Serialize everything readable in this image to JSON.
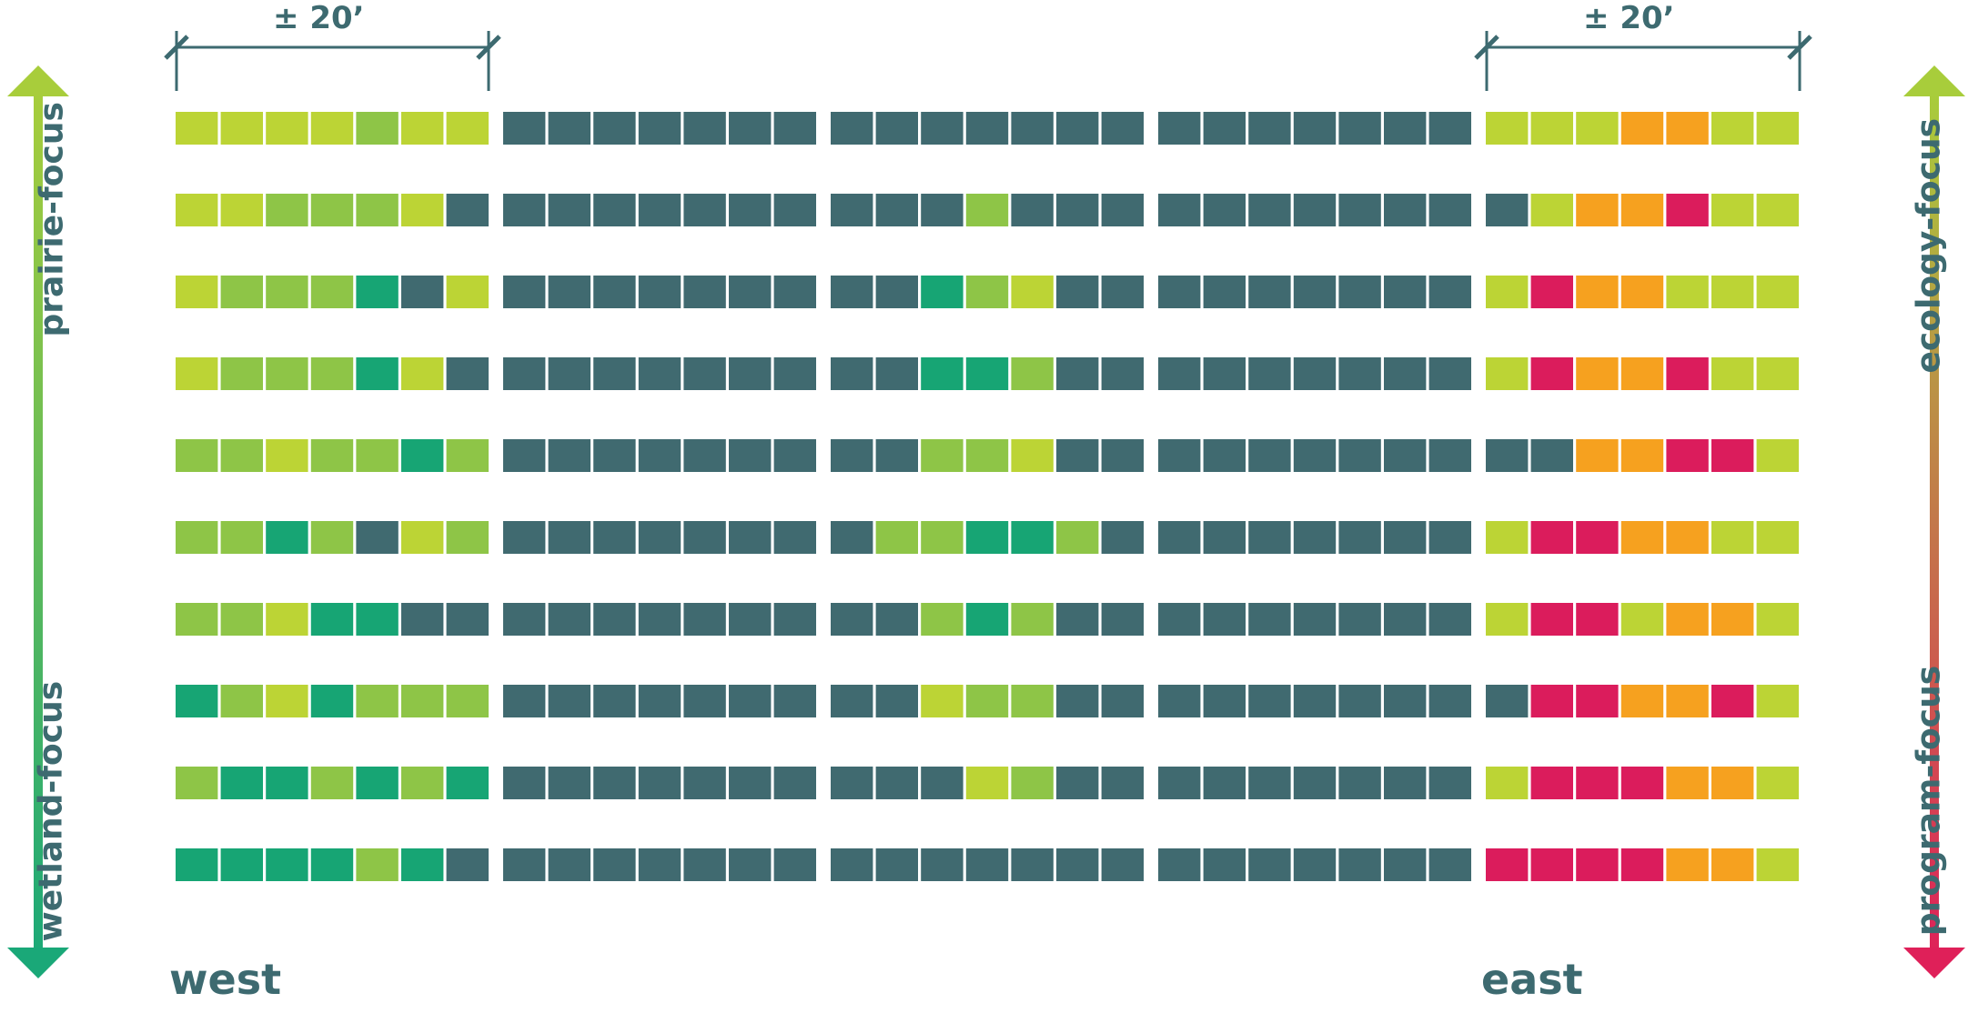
{
  "labels": {
    "west": "west",
    "east": "east",
    "prairie": "prairie-focus",
    "wetland": "wetland-focus",
    "ecology": "ecology-focus",
    "program": "program-focus",
    "dim_left": "± 20’",
    "dim_right": "± 20’"
  },
  "palette": {
    "D": "#406a70",
    "Y": "#bcd435",
    "L": "#8ec547",
    "G": "#17a574",
    "O": "#f6a11f",
    "M": "#db1c5c",
    "text": "#3d6a70",
    "arrow_left_top": "#a8cd3b",
    "arrow_left_bottom": "#1aa878",
    "arrow_right_top": "#a8cd3b",
    "arrow_right_bottom": "#df2059"
  },
  "grid": {
    "rows": [
      [
        "YYYYLYY",
        "DDDDDDD",
        "DDDDDDD",
        "DDDDDDD",
        "YYYOOYY"
      ],
      [
        "YYLLLYD",
        "DDDDDDD",
        "DDDLDDD",
        "DDDDDDD",
        "DYOOMYY"
      ],
      [
        "YLLLGDY",
        "DDDDDDD",
        "DDGLYDD",
        "DDDDDDD",
        "YMOOYYY"
      ],
      [
        "YLLLGYD",
        "DDDDDDD",
        "DDGGLDD",
        "DDDDDDD",
        "YMOOMYY"
      ],
      [
        "LLYLLGL",
        "DDDDDDD",
        "DDLLYDD",
        "DDDDDDD",
        "DDOOMMY"
      ],
      [
        "LLGLDYL",
        "DDDDDDD",
        "DLLGGLD",
        "DDDDDDD",
        "YMMOOYY"
      ],
      [
        "LLYGGDD",
        "DDDDDDD",
        "DDLGLDD",
        "DDDDDDD",
        "YMMYOOY"
      ],
      [
        "GLYGLLL",
        "DDDDDDD",
        "DDYLLDD",
        "DDDDDDD",
        "DMMOOMY"
      ],
      [
        "LGGLGLG",
        "DDDDDDD",
        "DDDYLDD",
        "DDDDDDD",
        "YMMMOOY"
      ],
      [
        "GGGGLGD",
        "DDDDDDD",
        "DDDDDDD",
        "DDDDDDD",
        "MMMMOOY"
      ]
    ]
  }
}
